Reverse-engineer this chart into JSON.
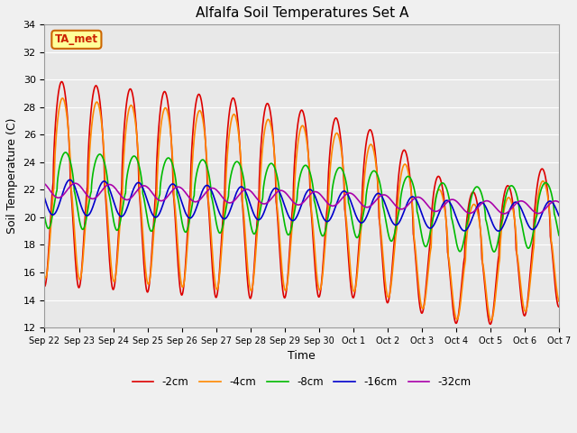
{
  "title": "Alfalfa Soil Temperatures Set A",
  "xlabel": "Time",
  "ylabel": "Soil Temperature (C)",
  "ylim": [
    12,
    34
  ],
  "xlim": [
    0,
    15
  ],
  "fig_facecolor": "#f0f0f0",
  "ax_facecolor": "#e8e8e8",
  "annotation_text": "TA_met",
  "annotation_bg": "#ffff99",
  "annotation_border": "#cc6600",
  "legend_labels": [
    "-2cm",
    "-4cm",
    "-8cm",
    "-16cm",
    "-32cm"
  ],
  "line_colors": [
    "#dd0000",
    "#ff8800",
    "#00bb00",
    "#0000cc",
    "#aa00aa"
  ],
  "line_widths": [
    1.2,
    1.2,
    1.2,
    1.2,
    1.2
  ],
  "xtick_labels": [
    "Sep 22",
    "Sep 23",
    "Sep 24",
    "Sep 25",
    "Sep 26",
    "Sep 27",
    "Sep 28",
    "Sep 29",
    "Sep 30",
    "Oct 1",
    "Oct 2",
    "Oct 3",
    "Oct 4",
    "Oct 5",
    "Oct 6",
    "Oct 7"
  ],
  "ytick_labels": [
    "12",
    "14",
    "16",
    "18",
    "20",
    "22",
    "24",
    "26",
    "28",
    "30",
    "32",
    "34"
  ],
  "figsize": [
    6.4,
    4.8
  ],
  "dpi": 100
}
